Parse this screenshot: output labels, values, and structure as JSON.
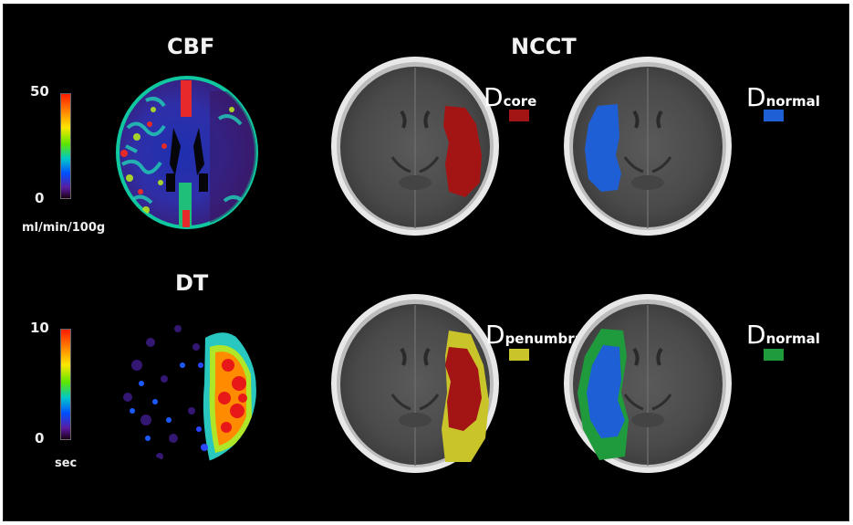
{
  "titles": {
    "cbf": "CBF",
    "dt": "DT",
    "ncct": "NCCT"
  },
  "cbf_colorbar": {
    "max_label": "50",
    "min_label": "0",
    "unit": "ml/min/100g"
  },
  "dt_colorbar": {
    "max_label": "10",
    "min_label": "0",
    "unit": "sec"
  },
  "panels": {
    "core": {
      "letter": "D",
      "suffix": "core",
      "color": "#a31515"
    },
    "normal_a": {
      "letter": "D",
      "suffix": "normal",
      "color": "#1f5fd6"
    },
    "penumbra": {
      "letter": "D",
      "suffix": "penumbra",
      "color": "#c9c42a"
    },
    "normal_b": {
      "letter": "D",
      "suffix": "normal",
      "color": "#1f9a3c"
    }
  }
}
